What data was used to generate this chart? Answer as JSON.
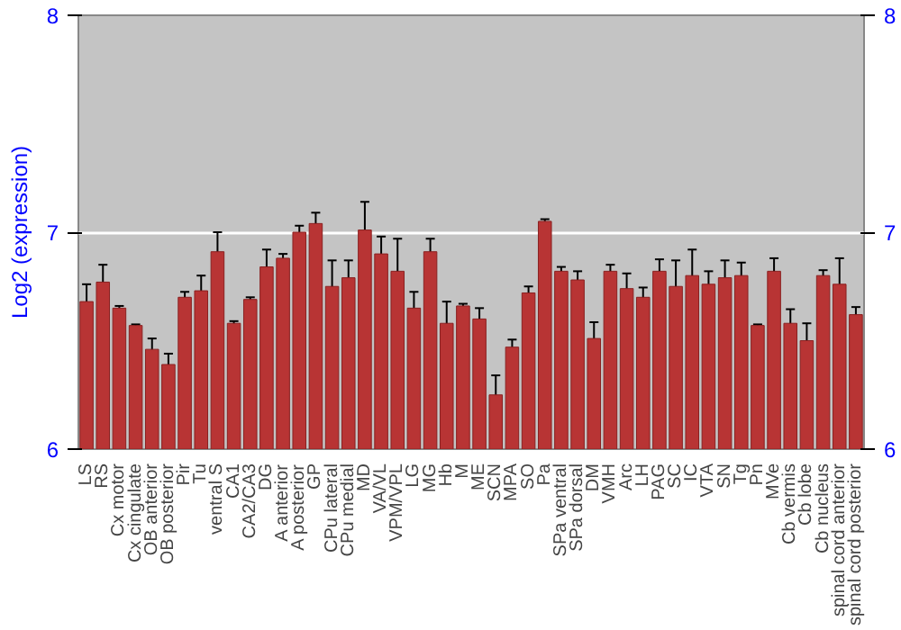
{
  "chart_data": {
    "type": "bar",
    "ylabel": "Log2 (expression)",
    "categories": [
      "LS",
      "RS",
      "Cx motor",
      "Cx cingulate",
      "OB anterior",
      "OB posterior",
      "Pir",
      "Tu",
      "ventral S",
      "CA1",
      "CA2/CA3",
      "DG",
      "A anterior",
      "A posterior",
      "GP",
      "CPu lateral",
      "CPu medial",
      "MD",
      "VA/VL",
      "VPM/VPL",
      "LG",
      "MG",
      "Hb",
      "M",
      "ME",
      "SCN",
      "MPA",
      "SO",
      "Pa",
      "SPa ventral",
      "SPa dorsal",
      "DM",
      "VMH",
      "Arc",
      "LH",
      "PAG",
      "SC",
      "IC",
      "VTA",
      "SN",
      "Tg",
      "Pn",
      "MVe",
      "Cb vermis",
      "Cb lobe",
      "Cb nucleus",
      "spinal cord anterior",
      "spinal cord posterior"
    ],
    "values": [
      6.68,
      6.77,
      6.65,
      6.57,
      6.46,
      6.39,
      6.7,
      6.73,
      6.91,
      6.58,
      6.69,
      6.84,
      6.88,
      7.0,
      7.04,
      6.75,
      6.79,
      7.01,
      6.9,
      6.82,
      6.65,
      6.91,
      6.58,
      6.66,
      6.6,
      6.25,
      6.47,
      6.72,
      7.05,
      6.82,
      6.78,
      6.51,
      6.82,
      6.74,
      6.7,
      6.82,
      6.75,
      6.8,
      6.76,
      6.79,
      6.8,
      6.57,
      6.82,
      6.58,
      6.5,
      6.8,
      6.76,
      6.62
    ],
    "errors": [
      0.08,
      0.08,
      0.01,
      0.005,
      0.05,
      0.05,
      0.025,
      0.07,
      0.09,
      0.01,
      0.01,
      0.08,
      0.02,
      0.03,
      0.05,
      0.12,
      0.08,
      0.13,
      0.08,
      0.15,
      0.075,
      0.06,
      0.1,
      0.01,
      0.05,
      0.09,
      0.035,
      0.03,
      0.01,
      0.02,
      0.04,
      0.075,
      0.03,
      0.07,
      0.045,
      0.055,
      0.12,
      0.12,
      0.06,
      0.08,
      0.06,
      0.005,
      0.06,
      0.065,
      0.08,
      0.025,
      0.12,
      0.035
    ],
    "color": "#b83434",
    "ylim": [
      6,
      8
    ],
    "yticks": [
      6,
      7,
      8
    ],
    "y2lim": [
      6,
      8
    ],
    "y2ticks": [
      6,
      7,
      8
    ],
    "grid": "y"
  }
}
